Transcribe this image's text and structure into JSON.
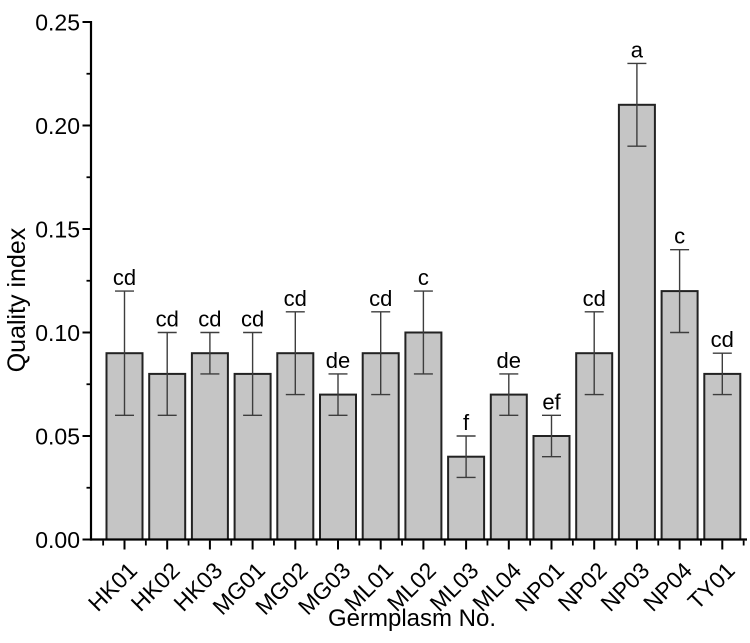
{
  "chart_data": {
    "type": "bar",
    "title": "",
    "xlabel": "Germplasm No.",
    "ylabel": "Quality index",
    "categories": [
      "HK01",
      "HK02",
      "HK03",
      "MG01",
      "MG02",
      "MG03",
      "ML01",
      "ML02",
      "ML03",
      "ML04",
      "NP01",
      "NP02",
      "NP03",
      "NP04",
      "TY01"
    ],
    "values": [
      0.09,
      0.08,
      0.09,
      0.08,
      0.09,
      0.07,
      0.09,
      0.1,
      0.04,
      0.07,
      0.05,
      0.09,
      0.21,
      0.12,
      0.08
    ],
    "errors": [
      0.03,
      0.02,
      0.01,
      0.02,
      0.02,
      0.01,
      0.02,
      0.02,
      0.01,
      0.01,
      0.01,
      0.02,
      0.02,
      0.02,
      0.01
    ],
    "sig_letters": [
      "cd",
      "cd",
      "cd",
      "cd",
      "cd",
      "de",
      "cd",
      "c",
      "f",
      "de",
      "ef",
      "cd",
      "a",
      "c",
      "cd"
    ],
    "ylim": [
      0,
      0.25
    ],
    "ytick_values": [
      0,
      0.05,
      0.1,
      0.15,
      0.2,
      0.25
    ],
    "ytick_labels": [
      "0.00",
      "0.05",
      "0.10",
      "0.15",
      "0.20",
      "0.25"
    ],
    "yminor_step": 0.025,
    "grid": "off",
    "legend": "none",
    "x_tick_rotation_deg": -45,
    "colors": {
      "bar_fill": "#c5c5c5",
      "bar_stroke": "#222222",
      "error_bar": "#3d3d3d",
      "axis": "#000000",
      "text": "#000000",
      "background": "#ffffff"
    }
  }
}
